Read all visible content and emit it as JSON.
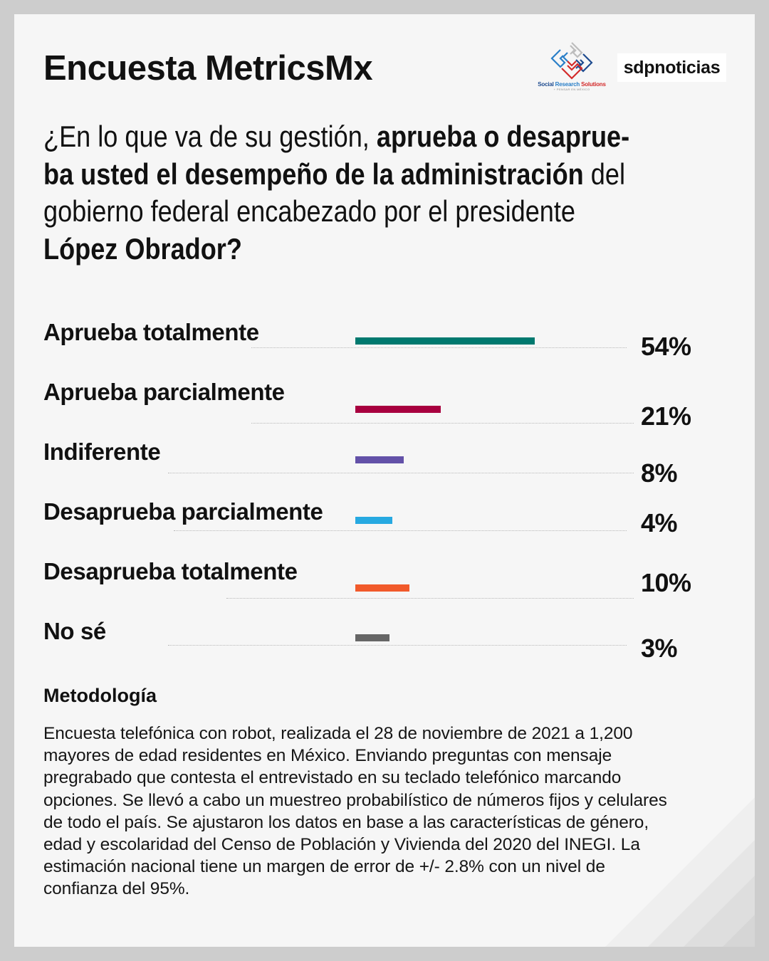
{
  "header": {
    "title": "Encuesta MetricsMx",
    "partner_logo": {
      "icon": "social-research-solutions-logo-icon",
      "name_part1": "Social ",
      "name_part2": "Research ",
      "name_part3": "Solutions",
      "tagline": "+ PENSAR EN MÉXICO"
    },
    "publisher_logo": "sdpnoticias"
  },
  "question": {
    "lines": [
      [
        {
          "text": "¿En lo que va de su gestión, ",
          "bold": false
        },
        {
          "text": "aprueba o desaprue-",
          "bold": true
        }
      ],
      [
        {
          "text": "ba usted el desempeño de la administración",
          "bold": true
        },
        {
          "text": " del",
          "bold": false
        }
      ],
      [
        {
          "text": "gobierno federal encabezado por el presidente",
          "bold": false
        }
      ],
      [
        {
          "text": "López Obrador?",
          "bold": true
        }
      ]
    ]
  },
  "chart_data": {
    "type": "bar",
    "orientation": "horizontal",
    "title": "¿En lo que va de su gestión, aprueba o desaprueba usted el desempeño de la administración del gobierno federal encabezado por el presidente López Obrador?",
    "categories": [
      "Aprueba totalmente",
      "Aprueba parcialmente",
      "Indiferente",
      "Desaprueba parcialmente",
      "Desaprueba totalmente",
      "No sé"
    ],
    "values": [
      54,
      21,
      8,
      4,
      10,
      3
    ],
    "value_labels": [
      "54%",
      "21%",
      "8%",
      "4%",
      "10%",
      "3%"
    ],
    "colors": [
      "#00796f",
      "#a8003f",
      "#6351a8",
      "#27a9e1",
      "#f15a2b",
      "#666666"
    ],
    "unit": "%",
    "xlabel": "",
    "ylabel": "",
    "grid": false,
    "legend": "none"
  },
  "methodology": {
    "title": "Metodología",
    "lines": [
      "Encuesta telefónica con robot, realizada el 28 de noviembre de 2021 a 1,200",
      "mayores de edad residentes en México. Enviando preguntas con mensaje",
      "pregrabado que contesta el entrevistado en su teclado telefónico marcando",
      "opciones. Se llevó a cabo un muestreo probabilístico de números fijos y celulares",
      "de todo el país. Se ajustaron los datos en base a las características de género,",
      "edad y escolaridad del Censo de Población y Vivienda del 2020 del INEGI. La",
      "estimación nacional tiene un margen de error de +/- 2.8% con un nivel de",
      "confianza del 95%."
    ]
  }
}
